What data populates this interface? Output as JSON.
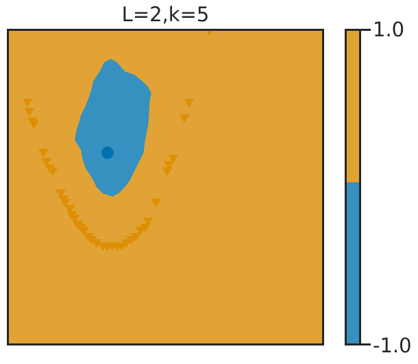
{
  "title": "L=2,k=5",
  "colors": {
    "positive_class": "#e1a335",
    "negative_class": "#3690c0",
    "scatter_positive": "#de8f05",
    "scatter_negative": "#0173b2",
    "frame": "#262626"
  },
  "chart_data": {
    "type": "scatter",
    "title": "L=2,k=5",
    "description_of_background": "decision region: class +1 everywhere except a blue region around the negative point",
    "xlim": [
      0,
      1
    ],
    "ylim": [
      0,
      1
    ],
    "axes_ticks_visible": false,
    "grid": false,
    "series": [
      {
        "marker": "triangle-down",
        "color": "#de8f05",
        "points": [
          [
            0.06,
            0.77
          ],
          [
            0.065,
            0.74
          ],
          [
            0.075,
            0.71
          ],
          [
            0.08,
            0.7
          ],
          [
            0.11,
            0.61
          ],
          [
            0.12,
            0.58
          ],
          [
            0.13,
            0.56
          ],
          [
            0.14,
            0.55
          ],
          [
            0.165,
            0.48
          ],
          [
            0.175,
            0.46
          ],
          [
            0.18,
            0.45
          ],
          [
            0.195,
            0.43
          ],
          [
            0.2,
            0.41
          ],
          [
            0.21,
            0.4
          ],
          [
            0.22,
            0.38
          ],
          [
            0.23,
            0.37
          ],
          [
            0.24,
            0.36
          ],
          [
            0.255,
            0.34
          ],
          [
            0.265,
            0.33
          ],
          [
            0.28,
            0.32
          ],
          [
            0.3,
            0.31
          ],
          [
            0.315,
            0.31
          ],
          [
            0.33,
            0.31
          ],
          [
            0.345,
            0.31
          ],
          [
            0.36,
            0.31
          ],
          [
            0.375,
            0.32
          ],
          [
            0.39,
            0.33
          ],
          [
            0.405,
            0.34
          ],
          [
            0.42,
            0.36
          ],
          [
            0.435,
            0.37
          ],
          [
            0.445,
            0.39
          ],
          [
            0.47,
            0.45
          ],
          [
            0.505,
            0.55
          ],
          [
            0.51,
            0.57
          ],
          [
            0.525,
            0.59
          ],
          [
            0.56,
            0.72
          ],
          [
            0.575,
            0.77
          ],
          [
            0.64,
            1.0
          ]
        ]
      },
      {
        "marker": "circle",
        "color": "#0173b2",
        "points": [
          [
            0.315,
            0.61
          ]
        ]
      }
    ],
    "region_negative_polygon": [
      [
        0.325,
        0.91
      ],
      [
        0.345,
        0.9
      ],
      [
        0.37,
        0.87
      ],
      [
        0.4,
        0.86
      ],
      [
        0.425,
        0.84
      ],
      [
        0.445,
        0.82
      ],
      [
        0.455,
        0.8
      ],
      [
        0.45,
        0.78
      ],
      [
        0.445,
        0.7
      ],
      [
        0.435,
        0.65
      ],
      [
        0.43,
        0.61
      ],
      [
        0.415,
        0.58
      ],
      [
        0.4,
        0.55
      ],
      [
        0.385,
        0.52
      ],
      [
        0.37,
        0.5
      ],
      [
        0.35,
        0.48
      ],
      [
        0.33,
        0.47
      ],
      [
        0.3,
        0.48
      ],
      [
        0.28,
        0.5
      ],
      [
        0.265,
        0.53
      ],
      [
        0.245,
        0.56
      ],
      [
        0.235,
        0.59
      ],
      [
        0.23,
        0.62
      ],
      [
        0.21,
        0.65
      ],
      [
        0.215,
        0.68
      ],
      [
        0.225,
        0.71
      ],
      [
        0.23,
        0.73
      ],
      [
        0.245,
        0.76
      ],
      [
        0.26,
        0.8
      ],
      [
        0.27,
        0.84
      ],
      [
        0.29,
        0.87
      ],
      [
        0.305,
        0.9
      ]
    ],
    "colorbar": {
      "min": -1.0,
      "max": 1.0,
      "min_label": "-1.0",
      "max_label": "1.0",
      "boundary": 0.0
    }
  }
}
